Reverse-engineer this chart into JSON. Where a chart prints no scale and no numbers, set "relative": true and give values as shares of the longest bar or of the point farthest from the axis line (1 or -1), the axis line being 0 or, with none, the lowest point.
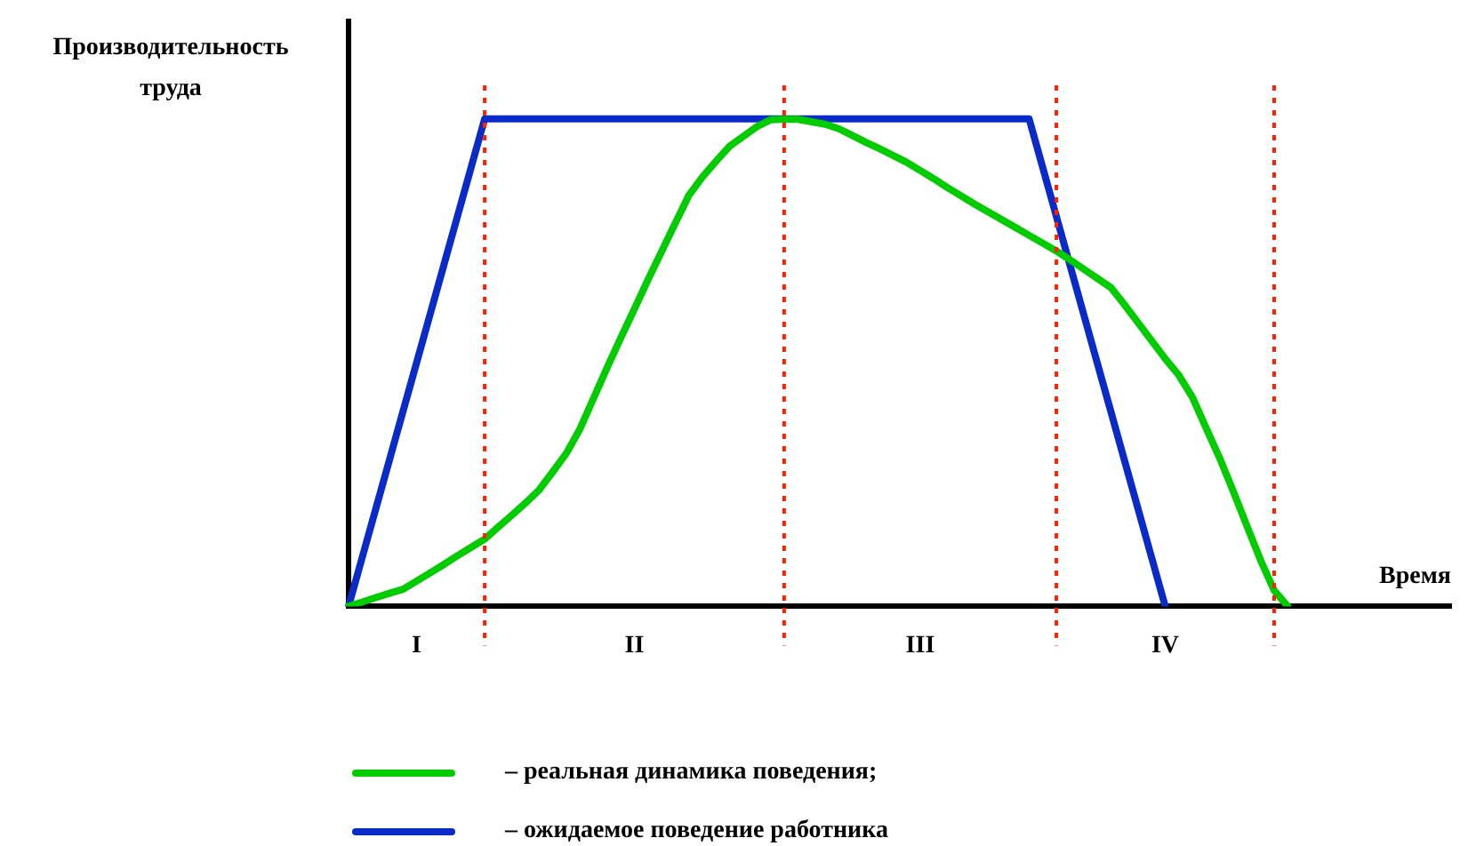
{
  "chart_data": {
    "type": "line",
    "relative": true,
    "xlabel": "Время",
    "ylabel": "Производительность труда",
    "tick_labels": "x",
    "grid": false,
    "legend": "bottom",
    "marker": "none",
    "line_style": "solid",
    "categories": [
      null,
      null,
      null,
      null,
      null,
      "I",
      null,
      null,
      null,
      null,
      null,
      null,
      null,
      null,
      null,
      null,
      null,
      null,
      null,
      null,
      null,
      "II",
      null,
      null,
      null,
      null,
      null,
      null,
      null,
      null,
      null,
      null,
      null,
      null,
      null,
      null,
      null,
      null,
      null,
      null,
      null,
      null,
      "III",
      null,
      null,
      null,
      null,
      null,
      null,
      null,
      null,
      null,
      null,
      null,
      null,
      null,
      null,
      null,
      null,
      null,
      "IV",
      null,
      null,
      null,
      null,
      null,
      null,
      null,
      null,
      null,
      null,
      null,
      null,
      null,
      null,
      null,
      null,
      null,
      null,
      null,
      null,
      null
    ],
    "series": [
      {
        "name": "– реальная динамика поведения;",
        "color": "#00cc00",
        "values": [
          0,
          0.009,
          0.018,
          0.027,
          0.035,
          0.052,
          0.069,
          0.086,
          0.104,
          0.121,
          0.138,
          0.163,
          0.187,
          0.212,
          0.239,
          0.276,
          0.314,
          0.364,
          0.427,
          0.49,
          0.551,
          0.61,
          0.67,
          0.728,
          0.786,
          0.843,
          0.881,
          0.913,
          0.944,
          0.964,
          0.984,
          0.998,
          0.999,
          0.999,
          0.994,
          0.989,
          0.98,
          0.966,
          0.952,
          0.939,
          0.925,
          0.911,
          0.894,
          0.877,
          0.859,
          0.842,
          0.825,
          0.809,
          0.793,
          0.777,
          0.761,
          0.745,
          0.729,
          0.711,
          0.692,
          0.673,
          0.654,
          0.619,
          0.582,
          0.545,
          0.508,
          0.474,
          0.429,
          0.366,
          0.304,
          0.236,
          0.165,
          0.095,
          0.033,
          0,
          null,
          null,
          null,
          null,
          null,
          null,
          null,
          null,
          null,
          null,
          null,
          null
        ]
      },
      {
        "name": "– ожидаемое поведение работника",
        "color": "#0a2bc8",
        "values": [
          0,
          0.1,
          0.2,
          0.3,
          0.4,
          0.5,
          0.6,
          0.7,
          0.8,
          0.9,
          1,
          1,
          1,
          1,
          1,
          1,
          1,
          1,
          1,
          1,
          1,
          1,
          1,
          1,
          1,
          1,
          1,
          1,
          1,
          1,
          1,
          1,
          1,
          1,
          1,
          1,
          1,
          1,
          1,
          1,
          1,
          1,
          1,
          1,
          1,
          1,
          1,
          1,
          1,
          1,
          1,
          0.9,
          0.8,
          0.7,
          0.6,
          0.5,
          0.4,
          0.3,
          0.2,
          0.1,
          0,
          null,
          null,
          null,
          null,
          null,
          null,
          null,
          null,
          null,
          null,
          null,
          null,
          null,
          null,
          null,
          null,
          null,
          null,
          null,
          null,
          null
        ]
      }
    ]
  }
}
